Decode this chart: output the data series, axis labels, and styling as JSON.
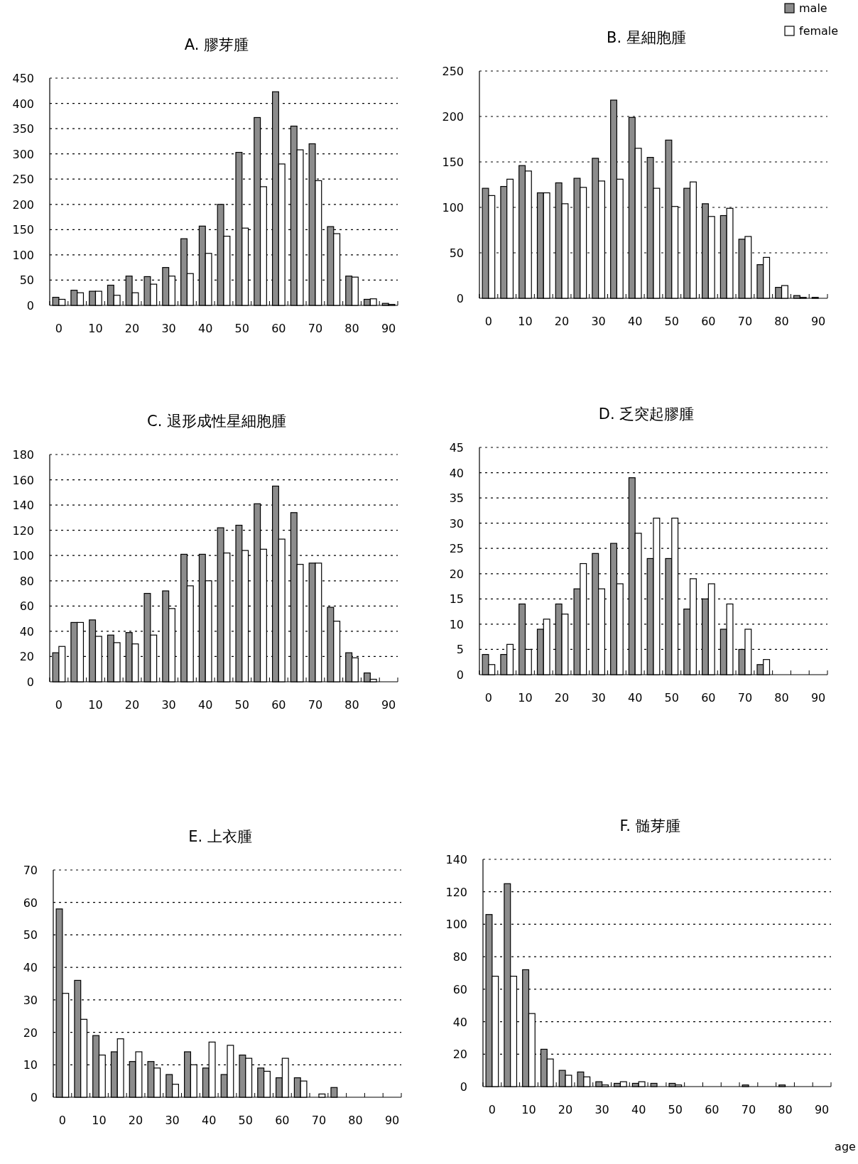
{
  "chart_data": [
    {
      "type": "bar",
      "title": "A. 膠芽腫",
      "categories": [
        "0",
        null,
        "10",
        null,
        "20",
        null,
        "30",
        null,
        "40",
        null,
        "50",
        null,
        "60",
        null,
        "70",
        null,
        "80",
        null,
        "90"
      ],
      "ylim": [
        0,
        450
      ],
      "yticks": [
        0,
        50,
        100,
        150,
        200,
        250,
        300,
        350,
        400,
        450
      ],
      "grid": "y",
      "series": [
        {
          "color": "#8c8c8c",
          "values": [
            16,
            30,
            28,
            40,
            58,
            57,
            75,
            132,
            157,
            200,
            303,
            372,
            423,
            355,
            320,
            156,
            58,
            12,
            4
          ]
        },
        {
          "color": "#ffffff",
          "values": [
            12,
            25,
            28,
            20,
            25,
            42,
            58,
            63,
            103,
            137,
            153,
            235,
            280,
            308,
            247,
            142,
            56,
            13,
            2
          ]
        }
      ]
    },
    {
      "type": "bar",
      "title": "B. 星細胞腫",
      "categories": [
        "0",
        null,
        "10",
        null,
        "20",
        null,
        "30",
        null,
        "40",
        null,
        "50",
        null,
        "60",
        null,
        "70",
        null,
        "80",
        null,
        "90"
      ],
      "ylim": [
        0,
        250
      ],
      "yticks": [
        0,
        50,
        100,
        150,
        200,
        250
      ],
      "grid": "y",
      "legend": "top right",
      "series": [
        {
          "name": "male",
          "color": "#8c8c8c",
          "values": [
            121,
            123,
            146,
            116,
            127,
            132,
            154,
            218,
            199,
            155,
            174,
            121,
            104,
            91,
            65,
            37,
            12,
            3,
            1
          ]
        },
        {
          "name": "female",
          "color": "#ffffff",
          "values": [
            113,
            131,
            140,
            116,
            104,
            122,
            129,
            131,
            165,
            121,
            101,
            128,
            90,
            99,
            68,
            45,
            14,
            1,
            0
          ]
        }
      ]
    },
    {
      "type": "bar",
      "title": "C. 退形成性星細胞腫",
      "categories": [
        "0",
        null,
        "10",
        null,
        "20",
        null,
        "30",
        null,
        "40",
        null,
        "50",
        null,
        "60",
        null,
        "70",
        null,
        "80",
        null,
        "90"
      ],
      "ylim": [
        0,
        180
      ],
      "yticks": [
        0,
        20,
        40,
        60,
        80,
        100,
        120,
        140,
        160,
        180
      ],
      "grid": "y",
      "series": [
        {
          "color": "#8c8c8c",
          "values": [
            23,
            47,
            49,
            37,
            39,
            70,
            72,
            101,
            101,
            122,
            124,
            141,
            155,
            134,
            94,
            59,
            23,
            7,
            0
          ]
        },
        {
          "color": "#ffffff",
          "values": [
            28,
            47,
            36,
            31,
            30,
            37,
            58,
            76,
            80,
            102,
            104,
            105,
            113,
            93,
            94,
            48,
            19,
            2,
            0
          ]
        }
      ]
    },
    {
      "type": "bar",
      "title": "D. 乏突起膠腫",
      "categories": [
        "0",
        null,
        "10",
        null,
        "20",
        null,
        "30",
        null,
        "40",
        null,
        "50",
        null,
        "60",
        null,
        "70",
        null,
        "80",
        null,
        "90"
      ],
      "ylim": [
        0,
        45
      ],
      "yticks": [
        0,
        5,
        10,
        15,
        20,
        25,
        30,
        35,
        40,
        45
      ],
      "grid": "y",
      "series": [
        {
          "color": "#8c8c8c",
          "values": [
            4,
            4,
            14,
            9,
            14,
            17,
            24,
            26,
            39,
            23,
            23,
            13,
            15,
            9,
            5,
            2,
            0,
            0,
            0
          ]
        },
        {
          "color": "#ffffff",
          "values": [
            2,
            6,
            5,
            11,
            12,
            22,
            17,
            18,
            28,
            31,
            31,
            19,
            18,
            14,
            9,
            3,
            0,
            0,
            0
          ]
        }
      ]
    },
    {
      "type": "bar",
      "title": "E. 上衣腫",
      "categories": [
        "0",
        null,
        "10",
        null,
        "20",
        null,
        "30",
        null,
        "40",
        null,
        "50",
        null,
        "60",
        null,
        "70",
        null,
        "80",
        null,
        "90"
      ],
      "ylim": [
        0,
        70
      ],
      "yticks": [
        0,
        10,
        20,
        30,
        40,
        50,
        60,
        70
      ],
      "grid": "y",
      "series": [
        {
          "color": "#8c8c8c",
          "values": [
            58,
            36,
            19,
            14,
            11,
            11,
            7,
            14,
            9,
            7,
            13,
            9,
            6,
            6,
            0,
            3,
            0,
            0,
            0
          ]
        },
        {
          "color": "#ffffff",
          "values": [
            32,
            24,
            13,
            18,
            14,
            9,
            4,
            10,
            17,
            16,
            12,
            8,
            12,
            5,
            1,
            0,
            0,
            0,
            0
          ]
        }
      ]
    },
    {
      "type": "bar",
      "title": "F. 髄芽腫",
      "xlabel": "age",
      "categories": [
        "0",
        null,
        "10",
        null,
        "20",
        null,
        "30",
        null,
        "40",
        null,
        "50",
        null,
        "60",
        null,
        "70",
        null,
        "80",
        null,
        "90"
      ],
      "ylim": [
        0,
        140
      ],
      "yticks": [
        0,
        20,
        40,
        60,
        80,
        100,
        120,
        140
      ],
      "grid": "y",
      "series": [
        {
          "color": "#8c8c8c",
          "values": [
            106,
            125,
            72,
            23,
            10,
            9,
            3,
            2,
            2,
            2,
            2,
            0,
            0,
            0,
            1,
            0,
            1,
            0,
            0
          ]
        },
        {
          "color": "#ffffff",
          "values": [
            68,
            68,
            45,
            17,
            7,
            6,
            1,
            3,
            3,
            0,
            1,
            0,
            0,
            0,
            0,
            0,
            0,
            0,
            0
          ]
        }
      ]
    }
  ]
}
